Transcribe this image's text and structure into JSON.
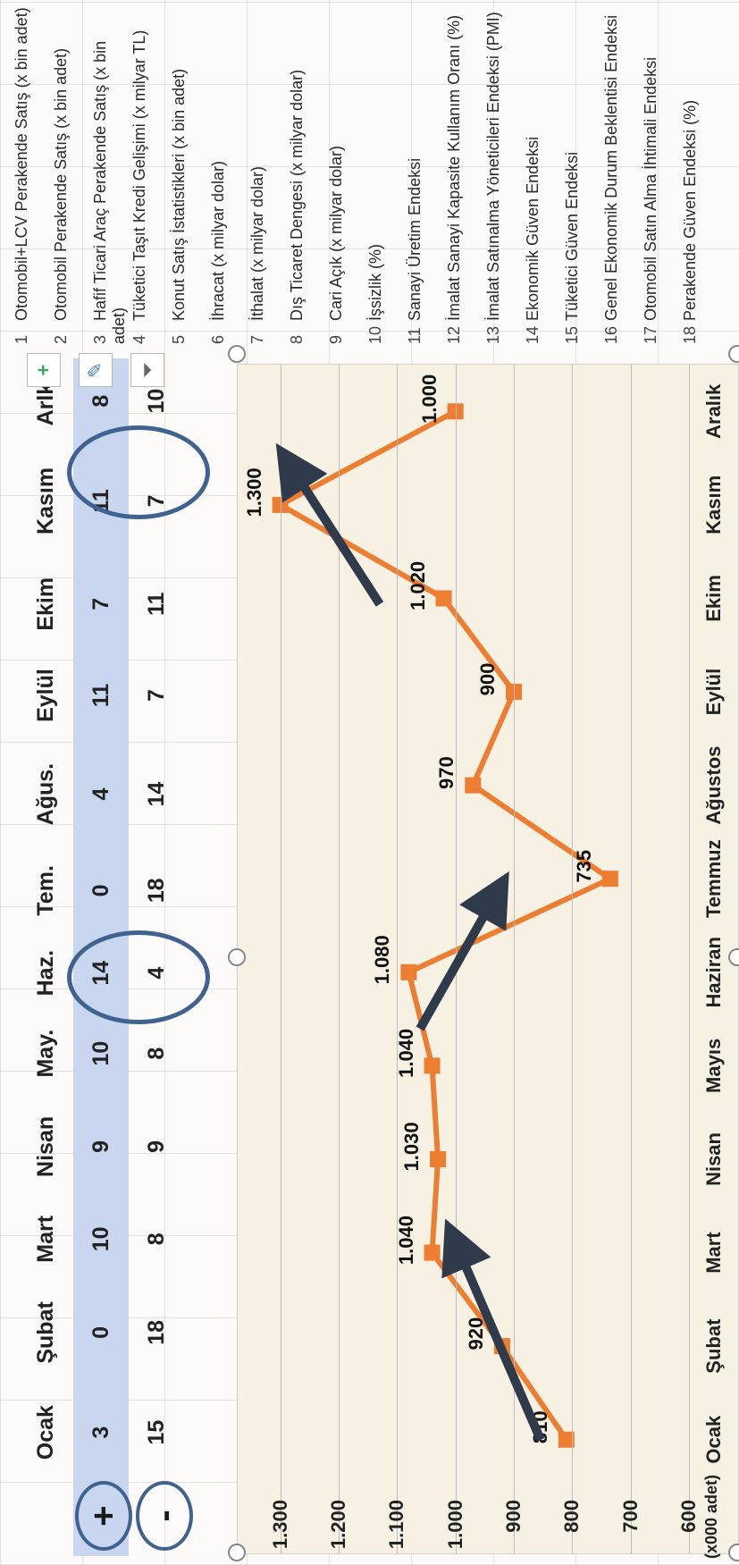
{
  "table": {
    "months": [
      "Ocak",
      "Şubat",
      "Mart",
      "Nisan",
      "May.",
      "Haz.",
      "Tem.",
      "Ağus.",
      "Eylül",
      "Ekim",
      "Kasım",
      "Arlk."
    ],
    "plus_label": "+",
    "minus_label": "-",
    "plus_row": [
      "3",
      "0",
      "10",
      "9",
      "10",
      "14",
      "0",
      "4",
      "11",
      "7",
      "11",
      "8"
    ],
    "minus_row": [
      "15",
      "18",
      "8",
      "9",
      "8",
      "4",
      "18",
      "14",
      "7",
      "11",
      "7",
      "10"
    ]
  },
  "chart_data": {
    "type": "line",
    "categories": [
      "Ocak",
      "Şubat",
      "Mart",
      "Nisan",
      "Mayıs",
      "Haziran",
      "Temmuz",
      "Ağustos",
      "Eylül",
      "Ekim",
      "Kasım",
      "Aralık"
    ],
    "values": [
      810,
      920,
      1040,
      1030,
      1040,
      1080,
      735,
      970,
      900,
      1020,
      1300,
      1000
    ],
    "value_labels": [
      "810",
      "920",
      "1.040",
      "1.030",
      "1.040",
      "1.080",
      "735",
      "970",
      "900",
      "1.020",
      "1.300",
      "1.000"
    ],
    "y_ticks": [
      "600",
      "700",
      "800",
      "900",
      "1.000",
      "1.100",
      "1.200",
      "1.300"
    ],
    "ylim": [
      600,
      1350
    ],
    "unit_label": "(x000 adet)",
    "line_color": "#ed7d31",
    "grid": true
  },
  "legend": {
    "items": [
      {
        "num": "1",
        "text": "Otomobil+LCV Perakende Satış (x bin adet)"
      },
      {
        "num": "2",
        "text": "Otomobil Perakende Satış (x bin adet)"
      },
      {
        "num": "3",
        "text": "Hafif Ticari Araç Perakende Satış (x bin adet)"
      },
      {
        "num": "4",
        "text": "Tüketici Taşıt Kredi Gelişimi (x milyar TL)"
      },
      {
        "num": "5",
        "text": "Konut Satış İstatistikleri (x bin adet)"
      },
      {
        "num": "6",
        "text": "İhracat (x milyar dolar)"
      },
      {
        "num": "7",
        "text": "İthalat (x milyar dolar)"
      },
      {
        "num": "8",
        "text": "Dış Ticaret Dengesi (x milyar dolar)"
      },
      {
        "num": "9",
        "text": "Cari Açık (x milyar dolar)"
      },
      {
        "num": "10",
        "text": "İşsizlik (%)"
      },
      {
        "num": "11",
        "text": "Sanayi Üretim Endeksi"
      },
      {
        "num": "12",
        "text": "İmalat Sanayi Kapasite Kullanım Oranı (%)"
      },
      {
        "num": "13",
        "text": "İmalat Satınalma Yöneticileri Endeksi (PMI)"
      },
      {
        "num": "14",
        "text": "Ekonomik Güven Endeksi"
      },
      {
        "num": "15",
        "text": "Tüketici Güven Endeksi"
      },
      {
        "num": "16",
        "text": "Genel Ekonomik Durum Beklentisi Endeksi"
      },
      {
        "num": "17",
        "text": "Otomobil Satın Alma İhtimali Endeksi"
      },
      {
        "num": "18",
        "text": "Perakende Güven Endeksi (%)"
      }
    ]
  },
  "toolbar": {
    "add_icon": "plus-icon",
    "style_icon": "brush-icon",
    "filter_icon": "filter-icon"
  },
  "colors": {
    "accent_blue": "#3f6290",
    "highlight_row": "#c8d6f0",
    "series": "#ed7d31",
    "arrow": "#2f3a4a"
  }
}
